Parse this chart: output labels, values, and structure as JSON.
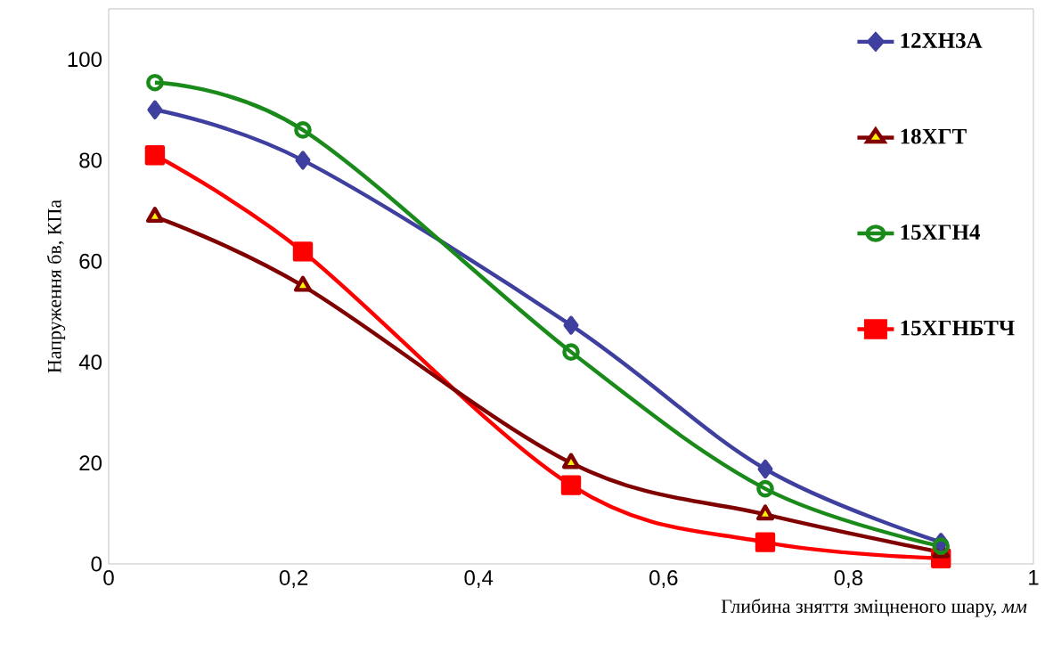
{
  "chart_data": {
    "type": "line",
    "xlabel": "Глибина зняття зміцненого шару, *мм*",
    "ylabel": "Напруження бв, КПа",
    "x": [
      0.05,
      0.21,
      0.5,
      0.71,
      0.9
    ],
    "series": [
      {
        "name": "12ХН3А",
        "color": "#3f3f9f",
        "marker": "diamond",
        "values": [
          90,
          80,
          47.3,
          18.8,
          4.3
        ]
      },
      {
        "name": "18ХГТ",
        "color": "#800000",
        "marker": "triangle",
        "values": [
          68.8,
          55.1,
          20,
          9.8,
          2.3
        ]
      },
      {
        "name": "15ХГН4",
        "color": "#1a8a1a",
        "marker": "circle",
        "values": [
          95.4,
          86,
          42,
          14.9,
          3.5
        ]
      },
      {
        "name": "15ХГНБТЧ",
        "color": "#ff0000",
        "marker": "square",
        "values": [
          81,
          61.9,
          15.6,
          4.3,
          1.1
        ]
      }
    ],
    "xlim": [
      0,
      1
    ],
    "ylim": [
      0,
      110
    ],
    "xticks": [
      0,
      {
        "value": 0.2,
        "label": "0,2"
      },
      {
        "value": 0.4,
        "label": "0,4"
      },
      {
        "value": 0.6,
        "label": "0,6"
      },
      {
        "value": 0.8,
        "label": "0,8"
      },
      1
    ],
    "yticks": [
      0,
      20,
      40,
      60,
      80,
      100
    ],
    "grid": false,
    "legend": "top right",
    "line_style": "solid"
  }
}
